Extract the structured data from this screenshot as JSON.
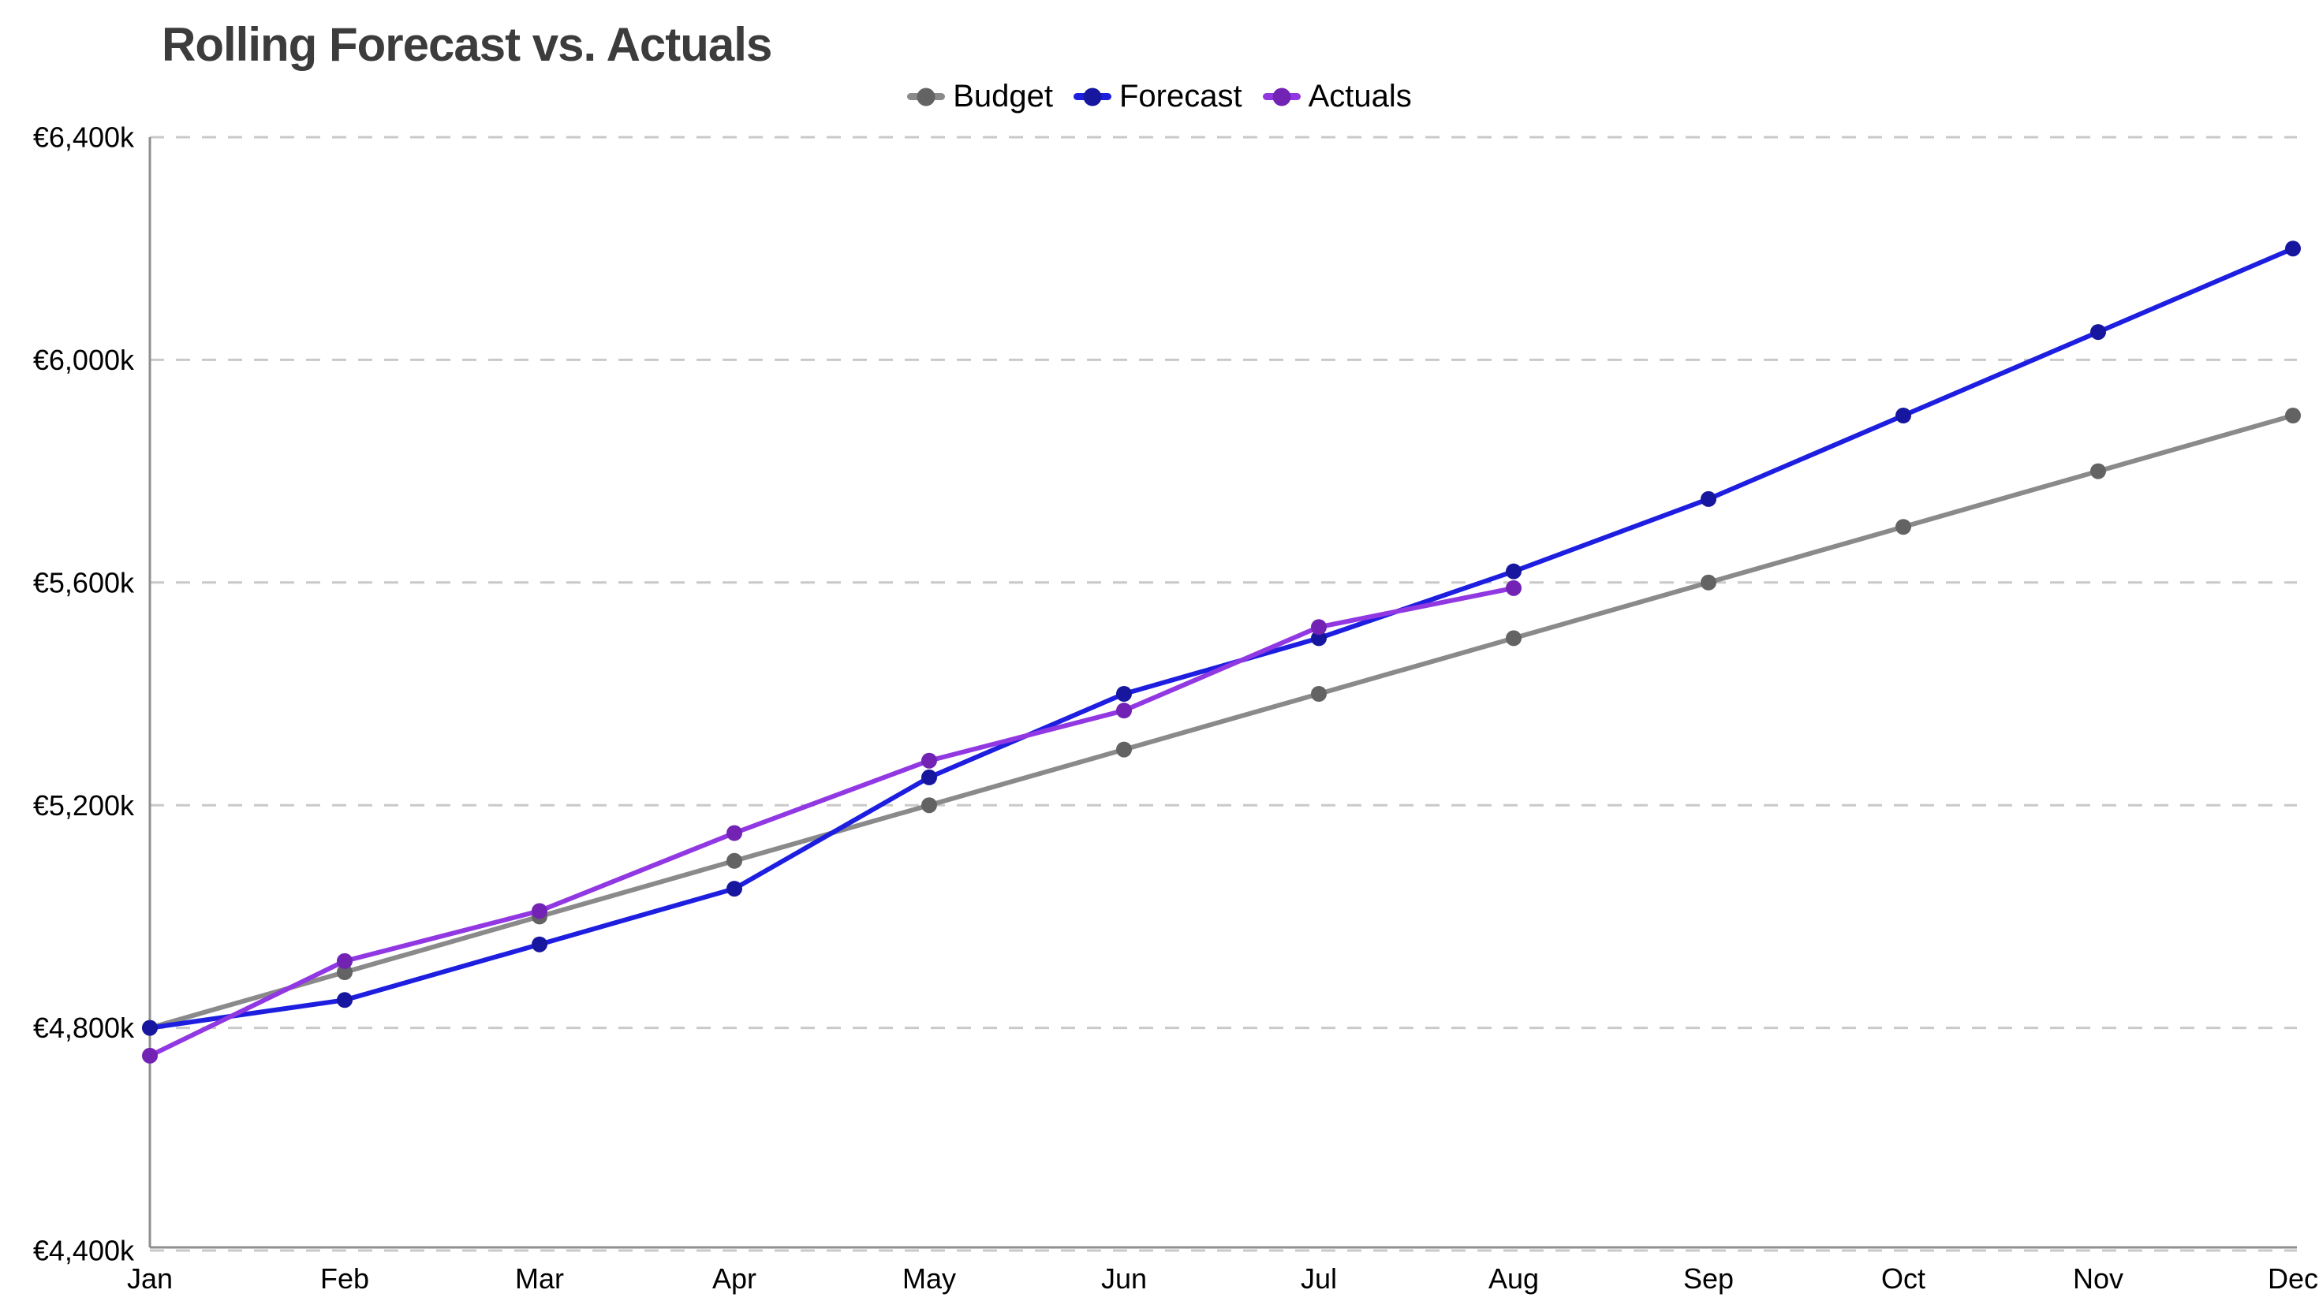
{
  "chart_data": {
    "type": "line",
    "title": "Rolling Forecast vs. Actuals",
    "x_categories": [
      "Jan",
      "Feb",
      "Mar",
      "Apr",
      "May",
      "Jun",
      "Jul",
      "Aug",
      "Sep",
      "Oct",
      "Nov",
      "Dec"
    ],
    "xlabel": "",
    "ylabel": "",
    "y_axis": {
      "min": 4400,
      "max": 6400,
      "step": 400,
      "tick_values": [
        6400,
        6000,
        5600,
        5200,
        4800,
        4400
      ],
      "tick_labels": [
        "€6,400k",
        "€6,000k",
        "€5,600k",
        "€5,200k",
        "€4,800k",
        "€4,400k"
      ]
    },
    "grid": "horizontal dashed gridlines on",
    "legend_position": "top-center",
    "series": [
      {
        "name": "Budget",
        "color": "#8a8a8a",
        "marker_color": "#636363",
        "values": [
          4800,
          4900,
          5000,
          5100,
          5200,
          5300,
          5400,
          5500,
          5600,
          5700,
          5800,
          5900
        ]
      },
      {
        "name": "Forecast",
        "color": "#1e1ee0",
        "marker_color": "#16169e",
        "values": [
          4800,
          4850,
          4950,
          5050,
          5250,
          5400,
          5500,
          5620,
          5750,
          5900,
          6050,
          6200
        ]
      },
      {
        "name": "Actuals",
        "color": "#9138e3",
        "marker_color": "#7323b4",
        "values": [
          4750,
          4920,
          5010,
          5150,
          5280,
          5370,
          5520,
          5590
        ]
      }
    ],
    "colors": {
      "title": "#3c3c3c",
      "axis_line": "#8f8f8f",
      "gridline": "#c9c9c9",
      "tick_text": "#000000"
    }
  }
}
